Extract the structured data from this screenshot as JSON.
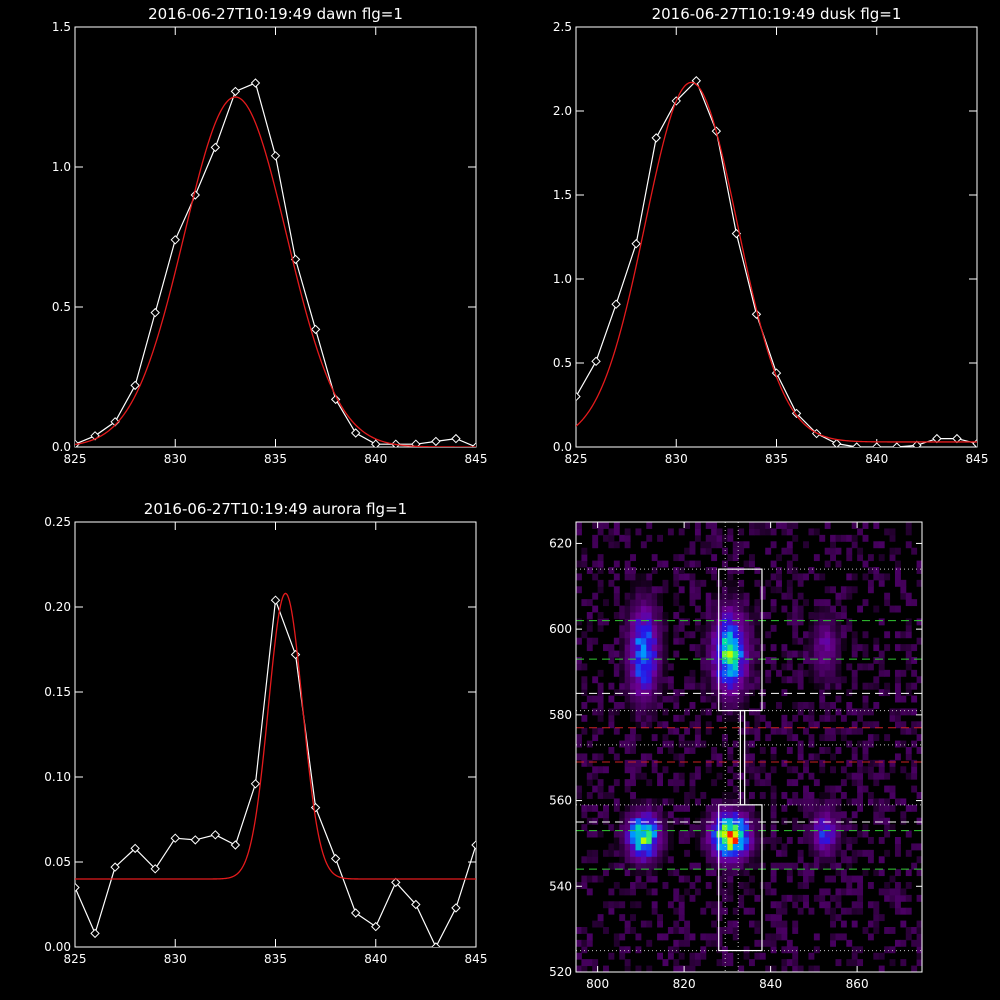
{
  "chart_data": [
    {
      "type": "line",
      "title": "2016-06-27T10:19:49 dawn flg=1",
      "xlim": [
        825,
        845
      ],
      "ylim": [
        0,
        1.5
      ],
      "xticks": [
        "825",
        "830",
        "835",
        "840",
        "845"
      ],
      "yticks": [
        "0.0",
        "0.5",
        "1.0",
        "1.5"
      ],
      "series": [
        {
          "color": "#ffffff",
          "markers": "diamond",
          "x": [
            825,
            826,
            827,
            828,
            829,
            830,
            831,
            832,
            833,
            834,
            835,
            836,
            837,
            838,
            839,
            840,
            841,
            842,
            843,
            844,
            845
          ],
          "y": [
            0.01,
            0.04,
            0.09,
            0.22,
            0.48,
            0.74,
            0.9,
            1.07,
            1.27,
            1.3,
            1.04,
            0.67,
            0.42,
            0.17,
            0.05,
            0.01,
            0.01,
            0.01,
            0.02,
            0.03,
            0.0
          ]
        },
        {
          "color": "#e41a1c",
          "fit": "gaussian",
          "amp": 1.25,
          "center": 833.0,
          "sigma": 2.55,
          "base": 0.0
        }
      ]
    },
    {
      "type": "line",
      "title": "2016-06-27T10:19:49 dusk flg=1",
      "xlim": [
        825,
        845
      ],
      "ylim": [
        0,
        2.5
      ],
      "xticks": [
        "825",
        "830",
        "835",
        "840",
        "845"
      ],
      "yticks": [
        "0.0",
        "0.5",
        "1.0",
        "1.5",
        "2.0",
        "2.5"
      ],
      "series": [
        {
          "color": "#ffffff",
          "markers": "diamond",
          "x": [
            825,
            826,
            827,
            828,
            829,
            830,
            831,
            832,
            833,
            834,
            835,
            836,
            837,
            838,
            839,
            840,
            841,
            842,
            843,
            844,
            845
          ],
          "y": [
            0.3,
            0.51,
            0.85,
            1.21,
            1.84,
            2.06,
            2.18,
            1.88,
            1.27,
            0.79,
            0.44,
            0.2,
            0.08,
            0.02,
            0.0,
            0.0,
            0.0,
            0.01,
            0.05,
            0.05,
            0.02
          ]
        },
        {
          "color": "#e41a1c",
          "fit": "gaussian",
          "amp": 2.14,
          "center": 830.75,
          "sigma": 2.3,
          "base": 0.03
        }
      ]
    },
    {
      "type": "line",
      "title": "2016-06-27T10:19:49 aurora flg=1",
      "xlim": [
        825,
        845
      ],
      "ylim": [
        0,
        0.25
      ],
      "xticks": [
        "825",
        "830",
        "835",
        "840",
        "845"
      ],
      "yticks": [
        "0.00",
        "0.05",
        "0.10",
        "0.15",
        "0.20",
        "0.25"
      ],
      "series": [
        {
          "color": "#ffffff",
          "markers": "diamond",
          "x": [
            825,
            826,
            827,
            828,
            829,
            830,
            831,
            832,
            833,
            834,
            835,
            836,
            837,
            838,
            839,
            840,
            841,
            842,
            843,
            844,
            845
          ],
          "y": [
            0.035,
            0.008,
            0.047,
            0.058,
            0.046,
            0.064,
            0.063,
            0.066,
            0.06,
            0.096,
            0.204,
            0.172,
            0.082,
            0.052,
            0.02,
            0.012,
            0.038,
            0.025,
            0.0,
            0.023,
            0.06
          ]
        },
        {
          "color": "#e41a1c",
          "fit": "gaussian",
          "amp": 0.168,
          "center": 835.5,
          "sigma": 0.85,
          "base": 0.04
        }
      ]
    },
    {
      "type": "heatmap",
      "xlim": [
        795,
        875
      ],
      "ylim": [
        520,
        625
      ],
      "xticks": [
        "800",
        "820",
        "840",
        "860"
      ],
      "yticks": [
        "520",
        "540",
        "560",
        "580",
        "600",
        "620"
      ],
      "blobs": [
        {
          "x": 810,
          "y": 594,
          "sx": 2.2,
          "sy": 7,
          "amp": 0.55
        },
        {
          "x": 810,
          "y": 551,
          "sx": 2.5,
          "sy": 3.5,
          "amp": 0.75
        },
        {
          "x": 830,
          "y": 594,
          "sx": 2.6,
          "sy": 6,
          "amp": 0.7
        },
        {
          "x": 830,
          "y": 551,
          "sx": 2.8,
          "sy": 3.5,
          "amp": 1.0
        },
        {
          "x": 852,
          "y": 552,
          "sx": 2.0,
          "sy": 3.5,
          "amp": 0.38
        },
        {
          "x": 852,
          "y": 595,
          "sx": 2.0,
          "sy": 5,
          "amp": 0.22
        }
      ],
      "hlines": [
        {
          "y": 614,
          "color": "#c8c8c8",
          "style": "dotted"
        },
        {
          "y": 602,
          "color": "#33cc33",
          "style": "dashed"
        },
        {
          "y": 593,
          "color": "#33cc33",
          "style": "dashed"
        },
        {
          "y": 585,
          "color": "#ffffff",
          "style": "dashed"
        },
        {
          "y": 581,
          "color": "#c8c8c8",
          "style": "dotted"
        },
        {
          "y": 577,
          "color": "#cc2222",
          "style": "dashed"
        },
        {
          "y": 573,
          "color": "#c8c8c8",
          "style": "dotted"
        },
        {
          "y": 569,
          "color": "#cc2222",
          "style": "dashed"
        },
        {
          "y": 559,
          "color": "#c8c8c8",
          "style": "dotted"
        },
        {
          "y": 555,
          "color": "#ffffff",
          "style": "dashed"
        },
        {
          "y": 553,
          "color": "#33cc33",
          "style": "dashed"
        },
        {
          "y": 544,
          "color": "#33cc33",
          "style": "dashed"
        },
        {
          "y": 525,
          "color": "#c8c8c8",
          "style": "dotted"
        }
      ],
      "vlines": [
        {
          "x": 829.5,
          "color": "#c8c8c8",
          "style": "dotted"
        },
        {
          "x": 832.5,
          "color": "#c8c8c8",
          "style": "dotted"
        }
      ],
      "boxes": [
        {
          "x0": 828,
          "x1": 838,
          "y0": 581,
          "y1": 614
        },
        {
          "x0": 828,
          "x1": 838,
          "y0": 525,
          "y1": 559
        }
      ],
      "connector": {
        "x0": 833,
        "x1": 834,
        "y0": 559,
        "y1": 581
      }
    }
  ]
}
